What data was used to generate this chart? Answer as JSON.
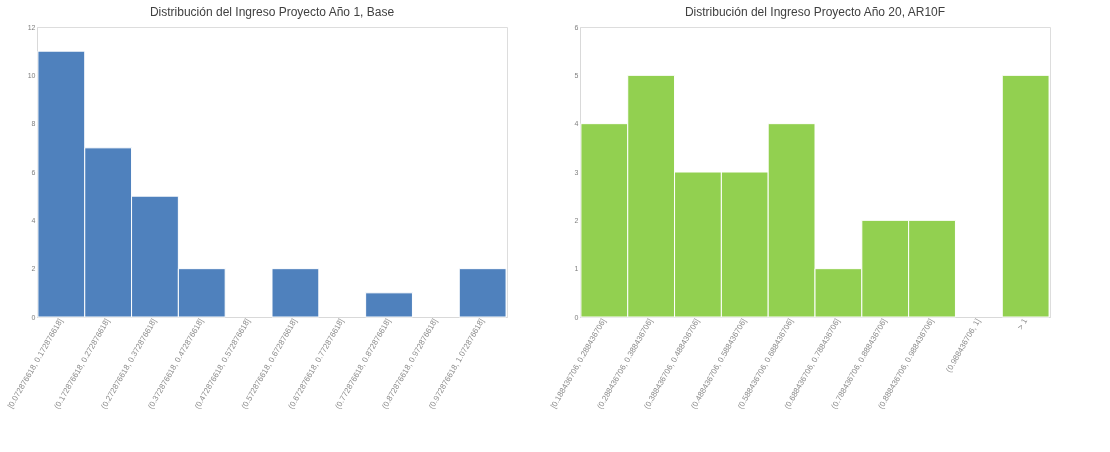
{
  "chart_data": [
    {
      "type": "bar",
      "title": "Distribución del Ingreso Proyecto Año 1, Base",
      "categories": [
        "[0.072876618, 0.172876618]",
        "(0.172876618, 0.272876618]",
        "(0.272876618, 0.372876618]",
        "(0.372876618, 0.472876618]",
        "(0.472876618, 0.572876618]",
        "(0.572876618, 0.672876618]",
        "(0.672876618, 0.772876618]",
        "(0.772876618, 0.872876618]",
        "(0.872876618, 0.972876618]",
        "(0.972876618, 1.072876618]"
      ],
      "series": [
        {
          "color": "#4f81bd",
          "values": [
            11,
            7,
            5,
            2,
            0,
            2,
            0,
            1,
            0,
            2
          ]
        }
      ],
      "ylim": [
        0,
        12
      ],
      "yticks": [
        0,
        2,
        4,
        6,
        8,
        10,
        12
      ],
      "grid": false,
      "legend": false
    },
    {
      "type": "bar",
      "title": "Distribución del Ingreso Proyecto Año 20, AR10F",
      "categories": [
        "[0.188436706, 0.288436706]",
        "(0.288436706, 0.388436706]",
        "(0.388436706, 0.488436706]",
        "(0.488436706, 0.588436706]",
        "(0.588436706, 0.688436706]",
        "(0.688436706, 0.788436706]",
        "(0.788436706, 0.888436706]",
        "(0.888436706, 0.988436706]",
        "(0.988436706, 1]",
        "> 1"
      ],
      "series": [
        {
          "color": "#92d050",
          "values": [
            4,
            5,
            3,
            3,
            4,
            1,
            2,
            2,
            0,
            5
          ]
        }
      ],
      "ylim": [
        0,
        6
      ],
      "yticks": [
        0,
        1,
        2,
        3,
        4,
        5,
        6
      ],
      "grid": false,
      "legend": false
    }
  ]
}
